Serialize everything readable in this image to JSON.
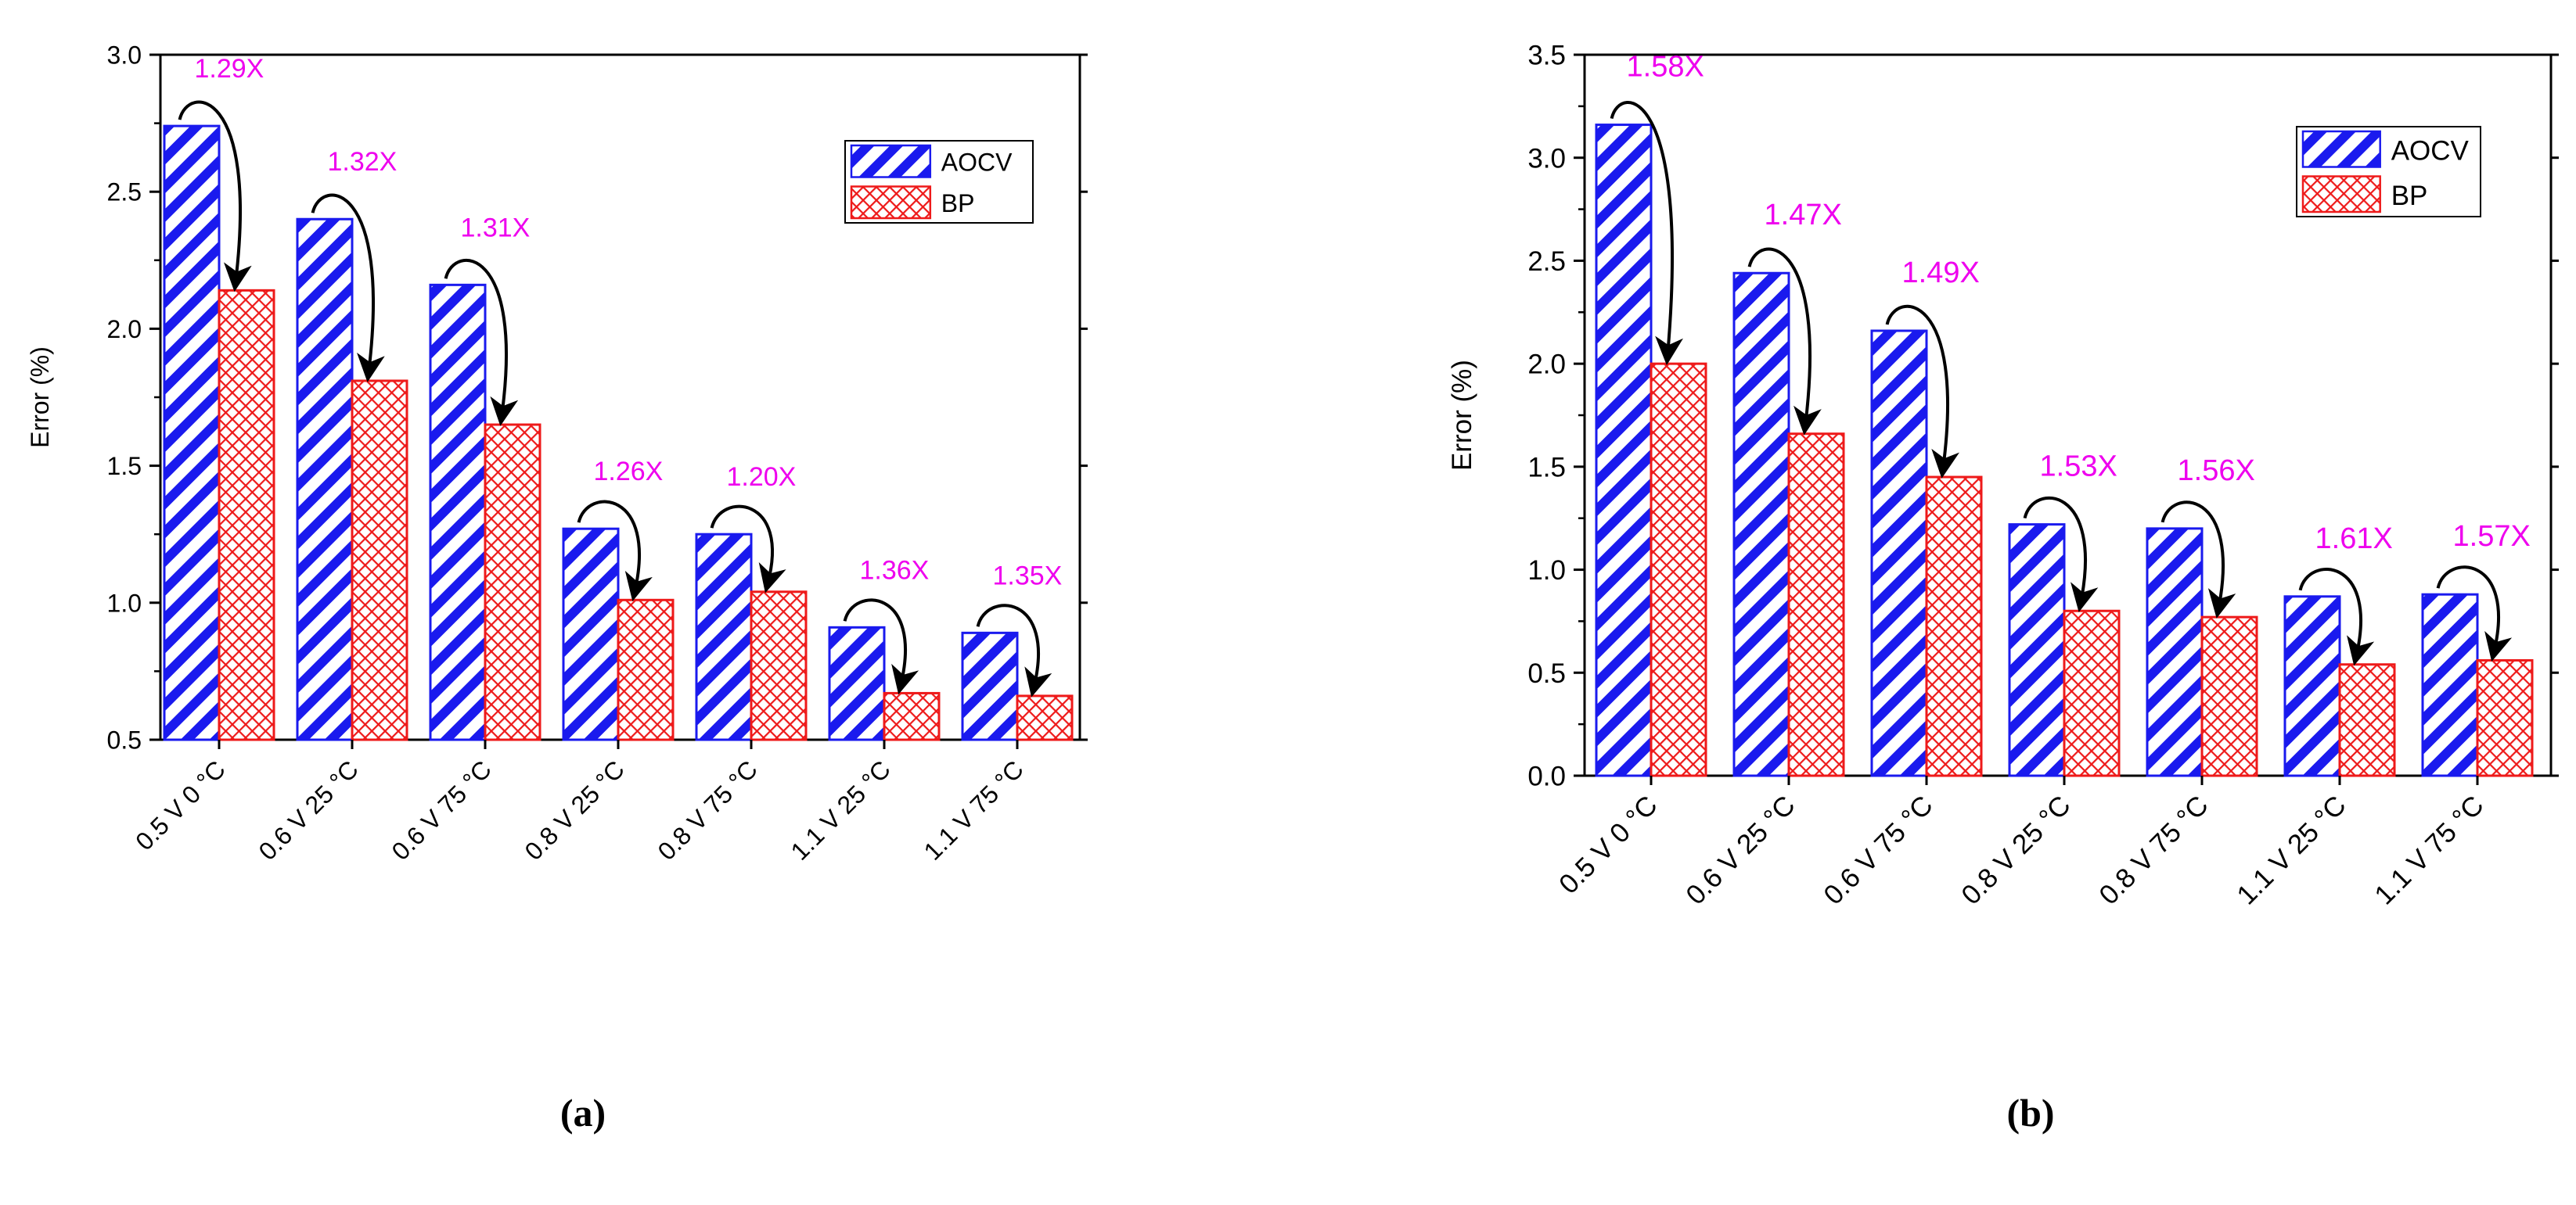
{
  "colors": {
    "aocv_stroke": "#1a1aee",
    "aocv_fill": "#ffffff",
    "bp_stroke": "#ee1a1a",
    "bp_fill": "#ffffff",
    "annotation": "#ee00ee",
    "axis": "#000000",
    "arrow": "#000000"
  },
  "icons": {
    "arrow": "curved-arrow-icon",
    "aocv_swatch": "hatched-swatch-icon",
    "bp_swatch": "crosshatched-swatch-icon"
  },
  "chart_data": [
    {
      "type": "bar",
      "panel_label": "(a)",
      "title": "",
      "xlabel": "",
      "ylabel": "Error (%)",
      "ylim": [
        0.5,
        3.0
      ],
      "yticks": [
        "0.5",
        "1.0",
        "1.5",
        "2.0",
        "2.5",
        "3.0"
      ],
      "categories": [
        "0.5 V  0 °C",
        "0.6 V  25 °C",
        "0.6 V  75 °C",
        "0.8 V  25 °C",
        "0.8 V  75 °C",
        "1.1 V  25 °C",
        "1.1 V  75 °C"
      ],
      "series": [
        {
          "name": "AOCV",
          "values": [
            2.74,
            2.4,
            2.16,
            1.27,
            1.25,
            0.91,
            0.89
          ]
        },
        {
          "name": "BP",
          "values": [
            2.14,
            1.81,
            1.65,
            1.01,
            1.04,
            0.67,
            0.66
          ]
        }
      ],
      "annotations": [
        "1.29X",
        "1.32X",
        "1.31X",
        "1.26X",
        "1.20X",
        "1.36X",
        "1.35X"
      ],
      "legend": {
        "position": "top-right",
        "items": [
          "AOCV",
          "BP"
        ]
      }
    },
    {
      "type": "bar",
      "panel_label": "(b)",
      "title": "",
      "xlabel": "",
      "ylabel": "Error (%)",
      "ylim": [
        0.0,
        3.5
      ],
      "yticks": [
        "0.0",
        "0.5",
        "1.0",
        "1.5",
        "2.0",
        "2.5",
        "3.0",
        "3.5"
      ],
      "categories": [
        "0.5 V  0 °C",
        "0.6 V  25 °C",
        "0.6 V  75 °C",
        "0.8 V  25 °C",
        "0.8 V  75 °C",
        "1.1 V  25 °C",
        "1.1 V  75 °C"
      ],
      "series": [
        {
          "name": "AOCV",
          "values": [
            3.16,
            2.44,
            2.16,
            1.22,
            1.2,
            0.87,
            0.88
          ]
        },
        {
          "name": "BP",
          "values": [
            2.0,
            1.66,
            1.45,
            0.8,
            0.77,
            0.54,
            0.56
          ]
        }
      ],
      "annotations": [
        "1.58X",
        "1.47X",
        "1.49X",
        "1.53X",
        "1.56X",
        "1.61X",
        "1.57X"
      ],
      "legend": {
        "position": "top-right",
        "items": [
          "AOCV",
          "BP"
        ]
      }
    }
  ]
}
